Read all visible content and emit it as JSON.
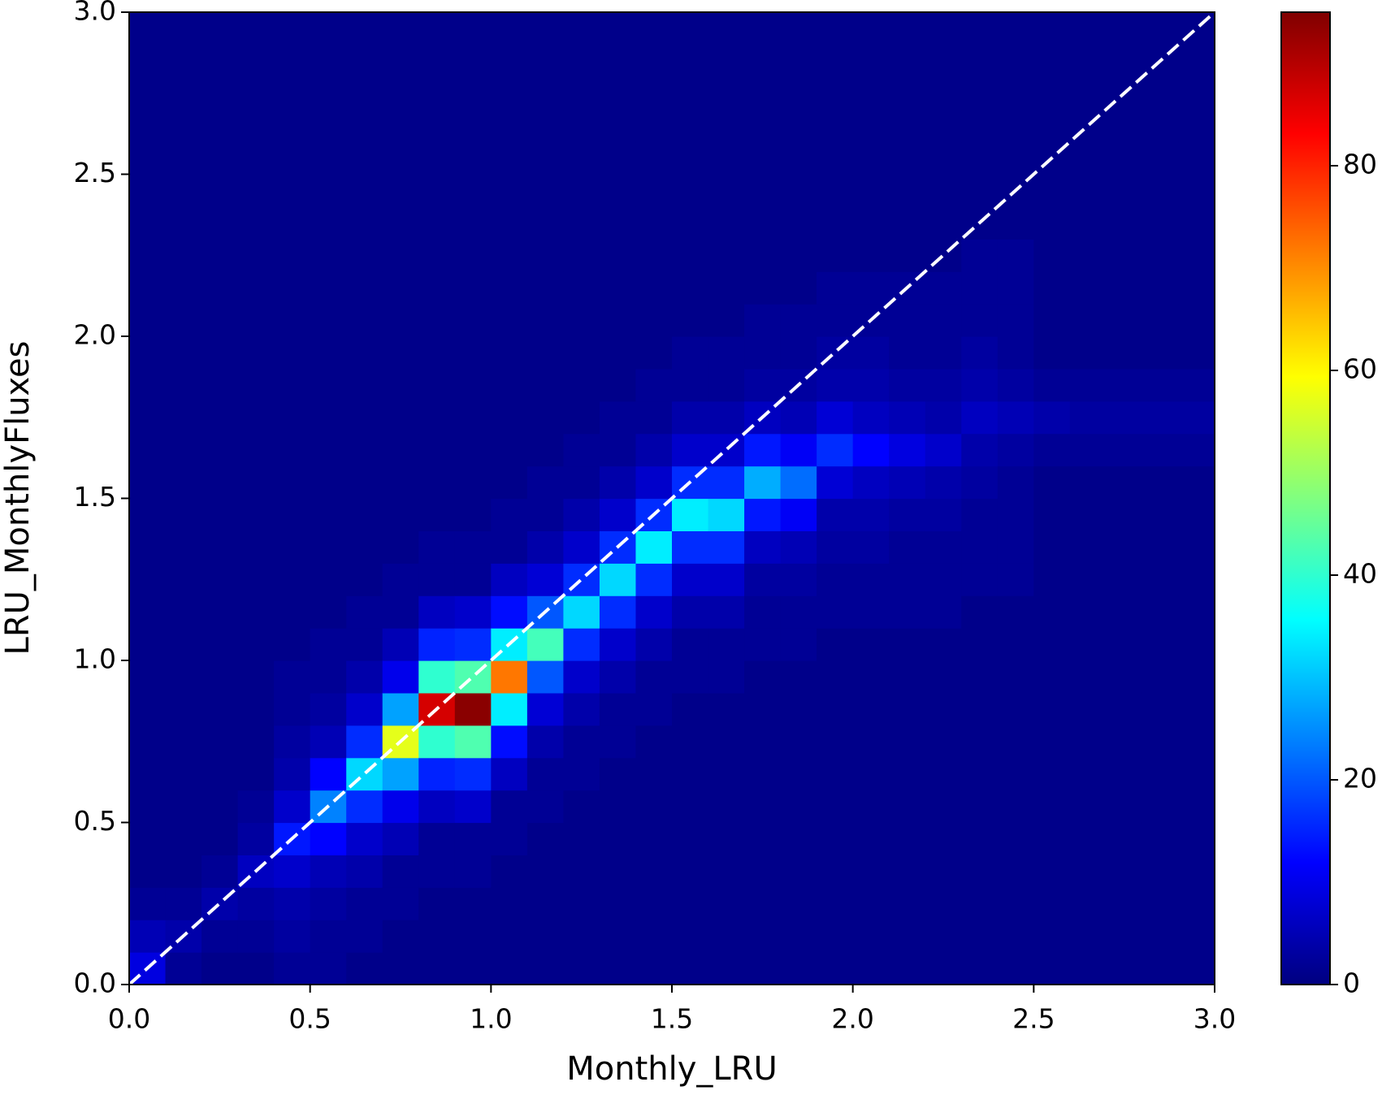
{
  "chart_data": {
    "type": "hist2d",
    "xlabel": "Monthly_LRU",
    "ylabel": "LRU_MonthlyFluxes",
    "xlim": [
      0,
      3
    ],
    "ylim": [
      0,
      3
    ],
    "xticks": [
      {
        "value": 0,
        "label": "0.0"
      },
      0.5,
      {
        "value": 1,
        "label": "1.0"
      },
      1.5,
      {
        "value": 2,
        "label": "2.0"
      },
      2.5,
      {
        "value": 3,
        "label": "3.0"
      }
    ],
    "yticks": [
      {
        "value": 0,
        "label": "0.0"
      },
      0.5,
      {
        "value": 1,
        "label": "1.0"
      },
      1.5,
      {
        "value": 2,
        "label": "2.0"
      },
      2.5,
      {
        "value": 3,
        "label": "3.0"
      }
    ],
    "colormap": "jet",
    "clim": [
      0,
      95
    ],
    "cticks": [
      0,
      20,
      40,
      60,
      80
    ],
    "reference_line": {
      "color": "#ffffff",
      "dashed": true
    },
    "xbins": [
      0,
      0.1,
      0.2,
      0.3,
      0.4,
      0.5,
      0.6,
      0.7,
      0.8,
      0.9,
      1,
      1.1,
      1.2,
      1.3,
      1.4,
      1.5,
      1.6,
      1.7,
      1.8,
      1.9,
      2,
      2.1,
      2.2,
      2.3,
      2.4,
      2.5,
      2.6,
      2.7,
      2.8,
      2.9,
      3
    ],
    "ybins": [
      0,
      0.1,
      0.2,
      0.3,
      0.4,
      0.5,
      0.6,
      0.7,
      0.8,
      0.9,
      1,
      1.1,
      1.2,
      1.3,
      1.4,
      1.5,
      1.6,
      1.7,
      1.8,
      1.9,
      2,
      2.1,
      2.2,
      2.3,
      2.4,
      2.5,
      2.6,
      2.7,
      2.8,
      2.9,
      3
    ],
    "z": [
      [
        9,
        5,
        2,
        1,
        1,
        1,
        1,
        1,
        1,
        1,
        1,
        1,
        1,
        1,
        1,
        1,
        1,
        1,
        1,
        1,
        1,
        1,
        1,
        1,
        1,
        1,
        1,
        1,
        1,
        1
      ],
      [
        2,
        4,
        2,
        1,
        1,
        1,
        1,
        1,
        1,
        1,
        1,
        1,
        1,
        1,
        1,
        1,
        1,
        1,
        1,
        1,
        1,
        1,
        1,
        1,
        1,
        1,
        1,
        1,
        1,
        1
      ],
      [
        1,
        2,
        4,
        2,
        1,
        1,
        1,
        1,
        1,
        1,
        1,
        1,
        1,
        1,
        1,
        1,
        1,
        1,
        1,
        1,
        1,
        1,
        1,
        1,
        1,
        1,
        1,
        1,
        1,
        1
      ],
      [
        1,
        2,
        3,
        6,
        3,
        2,
        1,
        1,
        1,
        1,
        1,
        1,
        1,
        1,
        1,
        1,
        1,
        1,
        1,
        1,
        1,
        1,
        1,
        1,
        1,
        1,
        1,
        1,
        1,
        1
      ],
      [
        2,
        3,
        4,
        7,
        14,
        7,
        4,
        3,
        2,
        2,
        1,
        1,
        1,
        1,
        1,
        1,
        1,
        1,
        1,
        1,
        1,
        1,
        1,
        1,
        1,
        1,
        1,
        1,
        1,
        1
      ],
      [
        2,
        2,
        3,
        5,
        12,
        24,
        12,
        5,
        3,
        2,
        2,
        1,
        1,
        1,
        1,
        1,
        1,
        1,
        1,
        1,
        1,
        1,
        1,
        1,
        1,
        1,
        1,
        1,
        1,
        1
      ],
      [
        1,
        2,
        2,
        4,
        7,
        16,
        32,
        16,
        7,
        4,
        2,
        2,
        1,
        1,
        1,
        1,
        1,
        1,
        1,
        1,
        1,
        1,
        1,
        1,
        1,
        1,
        1,
        1,
        1,
        1
      ],
      [
        1,
        1,
        2,
        2,
        5,
        10,
        27,
        57,
        27,
        10,
        5,
        2,
        2,
        1,
        1,
        1,
        1,
        1,
        1,
        1,
        1,
        1,
        1,
        1,
        1,
        1,
        1,
        1,
        1,
        1
      ],
      [
        1,
        1,
        1,
        2,
        2,
        6,
        15,
        40,
        87,
        40,
        15,
        6,
        2,
        2,
        1,
        1,
        1,
        1,
        1,
        1,
        1,
        1,
        1,
        1,
        1,
        1,
        1,
        1,
        1,
        1
      ],
      [
        1,
        1,
        1,
        2,
        2,
        7,
        16,
        43,
        94,
        43,
        16,
        7,
        2,
        2,
        1,
        1,
        1,
        1,
        1,
        1,
        1,
        1,
        1,
        1,
        1,
        1,
        1,
        1,
        1,
        1
      ],
      [
        1,
        1,
        1,
        1,
        2,
        2,
        6,
        13,
        34,
        72,
        34,
        13,
        6,
        2,
        2,
        1,
        1,
        1,
        1,
        1,
        1,
        1,
        1,
        1,
        1,
        1,
        1,
        1,
        1,
        1
      ],
      [
        1,
        1,
        1,
        1,
        1,
        2,
        2,
        4,
        8,
        20,
        42,
        20,
        8,
        4,
        2,
        2,
        1,
        1,
        1,
        1,
        1,
        1,
        1,
        1,
        1,
        1,
        1,
        1,
        1,
        1
      ],
      [
        1,
        1,
        1,
        1,
        1,
        1,
        2,
        2,
        4,
        7,
        16,
        32,
        16,
        7,
        4,
        2,
        2,
        1,
        1,
        1,
        1,
        1,
        1,
        1,
        1,
        1,
        1,
        1,
        1,
        1
      ],
      [
        1,
        1,
        1,
        1,
        1,
        1,
        1,
        2,
        2,
        4,
        7,
        16,
        32,
        16,
        7,
        4,
        2,
        2,
        1,
        1,
        1,
        1,
        1,
        1,
        1,
        1,
        1,
        1,
        1,
        1
      ],
      [
        1,
        1,
        1,
        1,
        1,
        1,
        1,
        1,
        2,
        2,
        4,
        7,
        16,
        34,
        16,
        7,
        4,
        2,
        2,
        1,
        1,
        1,
        1,
        1,
        1,
        1,
        1,
        1,
        1,
        1
      ],
      [
        1,
        1,
        1,
        1,
        1,
        1,
        1,
        1,
        1,
        2,
        2,
        4,
        7,
        16,
        34,
        16,
        7,
        4,
        2,
        2,
        1,
        1,
        1,
        1,
        1,
        1,
        1,
        1,
        1,
        1
      ],
      [
        1,
        1,
        1,
        1,
        1,
        1,
        1,
        1,
        1,
        2,
        2,
        4,
        7,
        16,
        32,
        16,
        7,
        4,
        2,
        2,
        1,
        1,
        1,
        1,
        1,
        1,
        1,
        1,
        1,
        1
      ],
      [
        1,
        1,
        1,
        1,
        1,
        1,
        1,
        1,
        1,
        1,
        2,
        2,
        3,
        6,
        14,
        28,
        14,
        6,
        3,
        2,
        2,
        1,
        1,
        1,
        1,
        1,
        1,
        1,
        1,
        1
      ],
      [
        1,
        1,
        1,
        1,
        1,
        1,
        1,
        1,
        1,
        1,
        2,
        2,
        3,
        5,
        11,
        22,
        11,
        5,
        3,
        2,
        2,
        1,
        1,
        1,
        1,
        1,
        1,
        1,
        1,
        1
      ],
      [
        1,
        1,
        1,
        1,
        1,
        1,
        1,
        1,
        1,
        1,
        1,
        2,
        2,
        3,
        4,
        8,
        16,
        8,
        4,
        3,
        2,
        2,
        1,
        1,
        1,
        1,
        1,
        1,
        1,
        1
      ],
      [
        1,
        1,
        1,
        1,
        1,
        1,
        1,
        1,
        1,
        1,
        1,
        2,
        2,
        3,
        4,
        6,
        12,
        6,
        4,
        3,
        2,
        2,
        1,
        1,
        1,
        1,
        1,
        1,
        1,
        1
      ],
      [
        1,
        1,
        1,
        1,
        1,
        1,
        1,
        1,
        1,
        1,
        1,
        2,
        2,
        2,
        3,
        5,
        9,
        5,
        3,
        2,
        2,
        2,
        1,
        1,
        1,
        1,
        1,
        1,
        1,
        1
      ],
      [
        1,
        1,
        1,
        1,
        1,
        1,
        1,
        1,
        1,
        1,
        1,
        2,
        2,
        2,
        3,
        4,
        7,
        4,
        3,
        2,
        2,
        2,
        1,
        1,
        1,
        1,
        1,
        1,
        1,
        1
      ],
      [
        1,
        1,
        1,
        1,
        1,
        1,
        1,
        1,
        1,
        1,
        1,
        1,
        2,
        2,
        2,
        3,
        4,
        6,
        4,
        3,
        2,
        2,
        2,
        1,
        1,
        1,
        1,
        1,
        1,
        1
      ],
      [
        1,
        1,
        1,
        1,
        1,
        1,
        1,
        1,
        1,
        1,
        1,
        1,
        2,
        2,
        2,
        2,
        3,
        5,
        3,
        2,
        2,
        2,
        2,
        1,
        1,
        1,
        1,
        1,
        1,
        1
      ],
      [
        1,
        1,
        1,
        1,
        1,
        1,
        1,
        1,
        1,
        1,
        1,
        1,
        1,
        1,
        1,
        1,
        2,
        4,
        2,
        1,
        1,
        1,
        1,
        1,
        1,
        1,
        1,
        1,
        1,
        1
      ],
      [
        1,
        1,
        1,
        1,
        1,
        1,
        1,
        1,
        1,
        1,
        1,
        1,
        1,
        1,
        1,
        1,
        2,
        3,
        2,
        1,
        1,
        1,
        1,
        1,
        1,
        1,
        1,
        1,
        1,
        1
      ],
      [
        1,
        1,
        1,
        1,
        1,
        1,
        1,
        1,
        1,
        1,
        1,
        1,
        1,
        1,
        1,
        1,
        2,
        3,
        2,
        1,
        1,
        1,
        1,
        1,
        1,
        1,
        1,
        1,
        1,
        1
      ],
      [
        1,
        1,
        1,
        1,
        1,
        1,
        1,
        1,
        1,
        1,
        1,
        1,
        1,
        1,
        1,
        1,
        2,
        3,
        2,
        1,
        1,
        1,
        1,
        1,
        1,
        1,
        1,
        1,
        1,
        1
      ],
      [
        1,
        1,
        1,
        1,
        1,
        1,
        1,
        1,
        1,
        1,
        1,
        1,
        1,
        1,
        1,
        1,
        2,
        3,
        2,
        1,
        1,
        1,
        1,
        1,
        1,
        1,
        1,
        1,
        1,
        1
      ]
    ]
  }
}
